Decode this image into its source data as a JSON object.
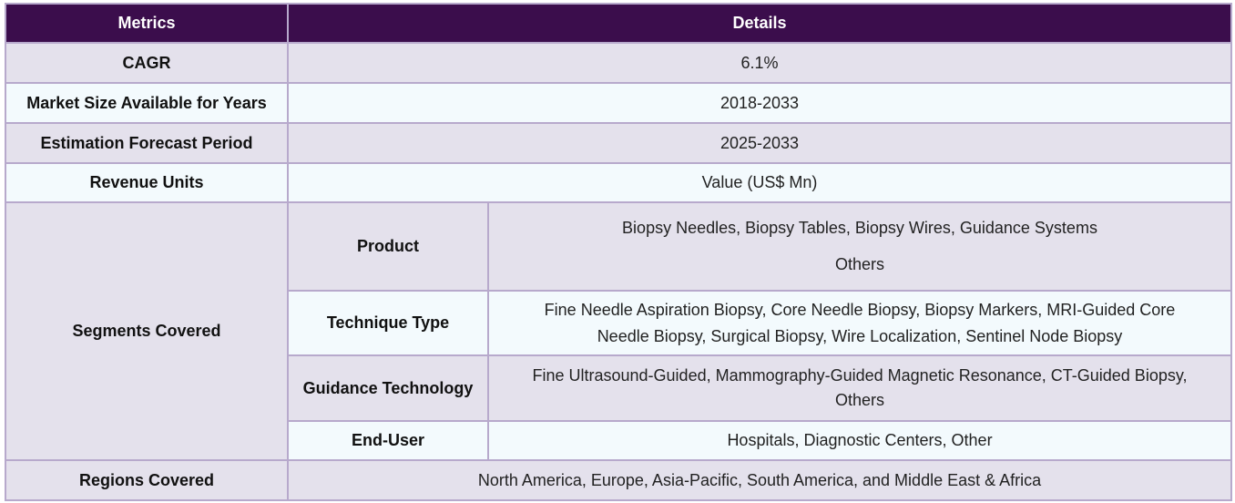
{
  "table": {
    "headers": {
      "metrics": "Metrics",
      "details": "Details"
    },
    "rows": {
      "cagr": {
        "label": "CAGR",
        "value": "6.1%"
      },
      "market_size_years": {
        "label": "Market Size Available for Years",
        "value": "2018-2033"
      },
      "forecast_period": {
        "label": "Estimation Forecast Period",
        "value": "2025-2033"
      },
      "revenue_units": {
        "label": "Revenue Units",
        "value": "Value (US$ Mn)"
      },
      "regions": {
        "label": "Regions Covered",
        "value": "North America, Europe, Asia-Pacific, South America, and Middle East & Africa"
      }
    },
    "segments": {
      "label": "Segments Covered",
      "product": {
        "label": "Product",
        "line1": "Biopsy Needles, Biopsy Tables, Biopsy Wires, Guidance Systems",
        "line2": "Others"
      },
      "technique": {
        "label": "Technique Type",
        "line1": "Fine Needle Aspiration Biopsy, Core Needle Biopsy, Biopsy Markers, MRI-Guided Core",
        "line2": "Needle Biopsy, Surgical Biopsy, Wire Localization, Sentinel Node Biopsy"
      },
      "guidance": {
        "label": "Guidance Technology",
        "line1": "Fine Ultrasound-Guided, Mammography-Guided Magnetic Resonance, CT-Guided Biopsy,",
        "line2": "Others"
      },
      "end_user": {
        "label": "End-User",
        "value": "Hospitals, Diagnostic Centers, Other"
      }
    }
  }
}
